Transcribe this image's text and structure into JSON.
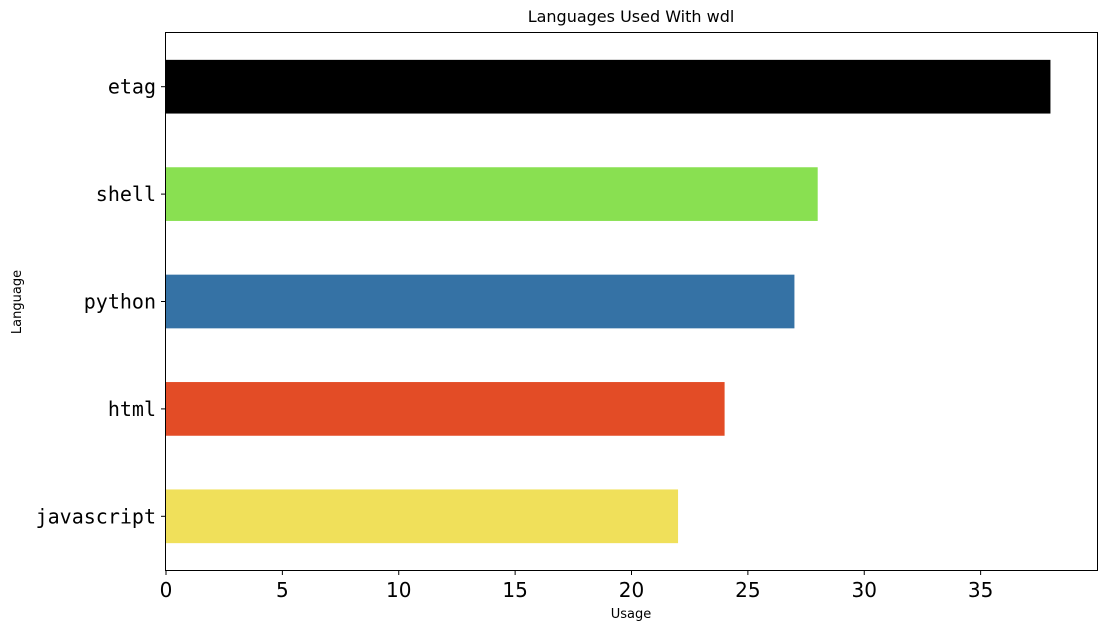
{
  "chart_data": {
    "type": "bar",
    "orientation": "horizontal",
    "title": "Languages Used With wdl",
    "xlabel": "Usage",
    "ylabel": "Language",
    "categories": [
      "javascript",
      "html",
      "python",
      "shell",
      "etag"
    ],
    "values": [
      22,
      24,
      27,
      28,
      38
    ],
    "colors": [
      "#f0e05a",
      "#e34c26",
      "#3572a5",
      "#89e051",
      "#000000"
    ],
    "xlim": [
      0,
      40.0
    ],
    "xticks": [
      0,
      5,
      10,
      15,
      20,
      25,
      30,
      35
    ],
    "grid": false,
    "legend": "none"
  }
}
